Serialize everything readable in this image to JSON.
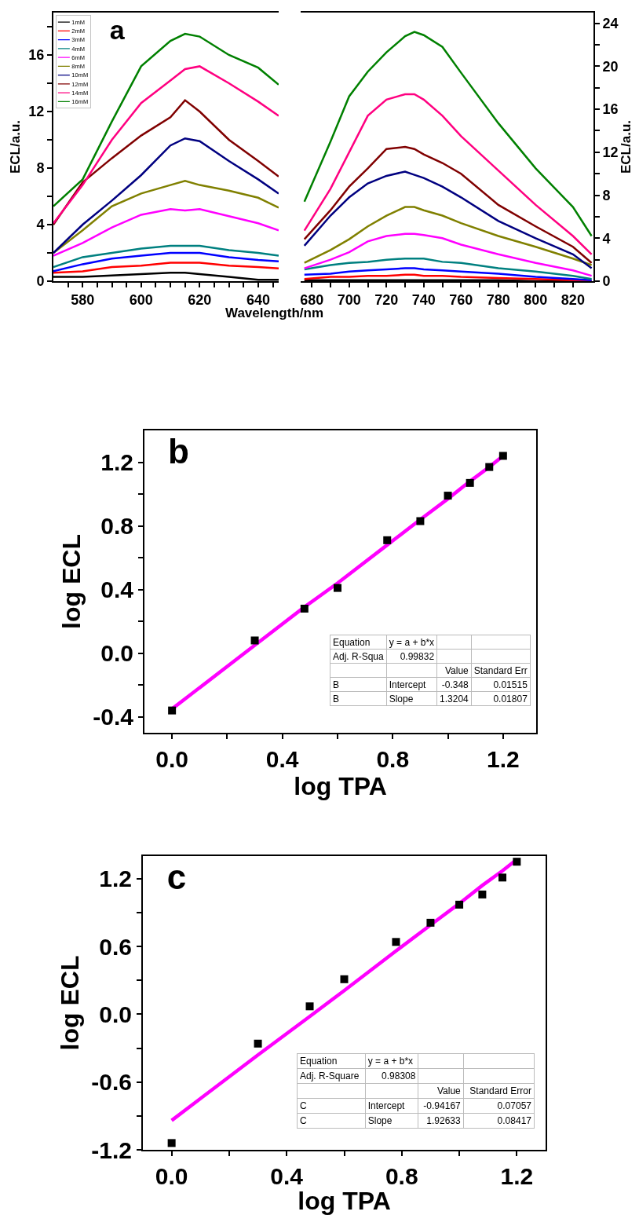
{
  "chart_data": [
    {
      "type": "line",
      "title": "a",
      "xlabel": "Wavelength/nm",
      "ylabel": "ECL/a.u.",
      "legend": "top left",
      "x": [
        570,
        580,
        590,
        600,
        610,
        615,
        620,
        630,
        640,
        647
      ],
      "xlim": [
        570,
        647
      ],
      "xticks": [
        {
          "value": 575,
          "label": null
        },
        580,
        {
          "value": 585,
          "label": null
        },
        {
          "value": 590,
          "label": null
        },
        {
          "value": 595,
          "label": null
        },
        600,
        {
          "value": 605,
          "label": null
        },
        {
          "value": 610,
          "label": null
        },
        {
          "value": 615,
          "label": null
        },
        620,
        {
          "value": 625,
          "label": null
        },
        {
          "value": 630,
          "label": null
        },
        {
          "value": 635,
          "label": null
        },
        640,
        {
          "value": 645,
          "label": null
        }
      ],
      "ylim": [
        0,
        19
      ],
      "yticks": [
        0,
        {
          "value": 2,
          "label": null
        },
        4,
        {
          "value": 6,
          "label": null
        },
        8,
        {
          "value": 10,
          "label": null
        },
        12,
        {
          "value": 14,
          "label": null
        },
        16,
        {
          "value": 18,
          "label": null
        }
      ],
      "series": [
        {
          "name": "1mM",
          "color": "#000000",
          "values": [
            0.3,
            0.3,
            0.4,
            0.5,
            0.6,
            0.6,
            0.5,
            0.3,
            0.1,
            0.1
          ]
        },
        {
          "name": "2mM",
          "color": "#ff0000",
          "values": [
            0.6,
            0.7,
            1.0,
            1.1,
            1.3,
            1.3,
            1.3,
            1.1,
            1.0,
            0.9
          ]
        },
        {
          "name": "3mM",
          "color": "#0000ff",
          "values": [
            0.7,
            1.2,
            1.6,
            1.8,
            2.0,
            2.0,
            2.0,
            1.7,
            1.5,
            1.4
          ]
        },
        {
          "name": "4mM",
          "color": "#008080",
          "values": [
            1.0,
            1.7,
            2.0,
            2.3,
            2.5,
            2.5,
            2.5,
            2.2,
            2.0,
            1.8
          ]
        },
        {
          "name": "6mM",
          "color": "#ff00ff",
          "values": [
            1.8,
            2.7,
            3.8,
            4.7,
            5.1,
            5.0,
            5.1,
            4.6,
            4.1,
            3.6
          ]
        },
        {
          "name": "8mM",
          "color": "#808000",
          "values": [
            2.0,
            3.6,
            5.3,
            6.2,
            6.8,
            7.1,
            6.8,
            6.4,
            5.9,
            5.2
          ]
        },
        {
          "name": "10mM",
          "color": "#000080",
          "values": [
            2.0,
            4.0,
            5.7,
            7.5,
            9.6,
            10.1,
            9.9,
            8.5,
            7.2,
            6.2
          ]
        },
        {
          "name": "12mM",
          "color": "#800000",
          "values": [
            4.0,
            7.0,
            8.7,
            10.3,
            11.6,
            12.8,
            12.0,
            10.0,
            8.5,
            7.4
          ]
        },
        {
          "name": "14mM",
          "color": "#ff0080",
          "values": [
            4.1,
            6.8,
            10.0,
            12.6,
            14.2,
            15.0,
            15.2,
            14.0,
            12.7,
            11.7
          ]
        },
        {
          "name": "16mM",
          "color": "#008000",
          "values": [
            5.3,
            7.2,
            11.3,
            15.2,
            17.0,
            17.5,
            17.3,
            16.0,
            15.1,
            13.9
          ]
        }
      ]
    },
    {
      "type": "line",
      "y2label": "ECL/a.u.",
      "x": [
        676,
        690,
        700,
        710,
        720,
        730,
        735,
        740,
        750,
        760,
        780,
        800,
        820,
        830
      ],
      "xlim": [
        674,
        831
      ],
      "xticks": [
        680,
        {
          "value": 690,
          "label": null
        },
        700,
        {
          "value": 710,
          "label": null
        },
        720,
        {
          "value": 730,
          "label": null
        },
        740,
        {
          "value": 750,
          "label": null
        },
        760,
        {
          "value": 770,
          "label": null
        },
        780,
        {
          "value": 790,
          "label": null
        },
        800,
        {
          "value": 810,
          "label": null
        },
        820
      ],
      "y2lim": [
        0,
        25
      ],
      "y2ticks": [
        0,
        {
          "value": 2,
          "label": null
        },
        4,
        {
          "value": 6,
          "label": null
        },
        8,
        {
          "value": 10,
          "label": null
        },
        12,
        {
          "value": 14,
          "label": null
        },
        16,
        {
          "value": 18,
          "label": null
        },
        20,
        {
          "value": 22,
          "label": null
        },
        24
      ],
      "series": [
        {
          "axis": "y2",
          "color": "#000000",
          "values": [
            0.1,
            0.1,
            0.1,
            0.1,
            0.1,
            0.1,
            0.1,
            0.1,
            0.1,
            0.1,
            0.1,
            0.0,
            0.0,
            0.0
          ]
        },
        {
          "axis": "y2",
          "color": "#ff0000",
          "values": [
            0.2,
            0.4,
            0.4,
            0.5,
            0.5,
            0.6,
            0.6,
            0.5,
            0.5,
            0.4,
            0.3,
            0.2,
            0.1,
            0.0
          ]
        },
        {
          "axis": "y2",
          "color": "#0000ff",
          "values": [
            0.6,
            0.7,
            0.9,
            1.0,
            1.1,
            1.2,
            1.2,
            1.1,
            1.0,
            0.9,
            0.7,
            0.4,
            0.2,
            0.1
          ]
        },
        {
          "axis": "y2",
          "color": "#008080",
          "values": [
            1.1,
            1.5,
            1.7,
            1.8,
            2.0,
            2.1,
            2.1,
            2.1,
            1.8,
            1.7,
            1.2,
            0.9,
            0.5,
            0.2
          ]
        },
        {
          "axis": "y2",
          "color": "#ff00ff",
          "values": [
            1.2,
            2.0,
            2.7,
            3.7,
            4.2,
            4.4,
            4.4,
            4.3,
            4.0,
            3.4,
            2.5,
            1.7,
            1.0,
            0.5
          ]
        },
        {
          "axis": "y2",
          "color": "#808000",
          "values": [
            1.7,
            2.9,
            3.9,
            5.1,
            6.1,
            6.9,
            6.9,
            6.6,
            6.1,
            5.4,
            4.2,
            3.2,
            2.1,
            1.5
          ]
        },
        {
          "axis": "y2",
          "color": "#000080",
          "values": [
            3.3,
            6.1,
            7.8,
            9.1,
            9.8,
            10.2,
            9.9,
            9.6,
            8.8,
            7.8,
            5.6,
            4.0,
            2.5,
            1.2
          ]
        },
        {
          "axis": "y2",
          "color": "#800000",
          "values": [
            3.9,
            6.6,
            8.8,
            10.5,
            12.3,
            12.5,
            12.3,
            11.8,
            11.0,
            10.0,
            7.1,
            5.1,
            3.2,
            1.7
          ]
        },
        {
          "axis": "y2",
          "color": "#ff0080",
          "values": [
            4.7,
            8.6,
            12.0,
            15.4,
            16.9,
            17.4,
            17.4,
            16.9,
            15.4,
            13.5,
            10.3,
            7.1,
            4.2,
            2.5
          ]
        },
        {
          "axis": "y2",
          "color": "#008000",
          "values": [
            7.4,
            13.0,
            17.2,
            19.5,
            21.3,
            22.8,
            23.2,
            22.9,
            21.8,
            19.4,
            14.7,
            10.5,
            6.9,
            4.2
          ]
        }
      ]
    },
    {
      "type": "scatter",
      "title": "b",
      "xlabel": "log TPA",
      "ylabel": "log ECL",
      "x": [
        0,
        0.3,
        0.48,
        0.6,
        0.78,
        0.9,
        1.0,
        1.08,
        1.15,
        1.2
      ],
      "xlim": [
        -0.1,
        1.32
      ],
      "xticks": [
        {
          "value": 0,
          "label": "0.0"
        },
        {
          "value": 0.2,
          "label": null
        },
        0.4,
        {
          "value": 0.6,
          "label": null
        },
        0.8,
        {
          "value": 1.0,
          "label": null
        },
        1.2
      ],
      "ylim": [
        -0.5,
        1.4
      ],
      "yticks": [
        -0.4,
        {
          "value": -0.2,
          "label": null
        },
        {
          "value": 0,
          "label": "0.0"
        },
        {
          "value": 0.2,
          "label": null
        },
        0.4,
        {
          "value": 0.6,
          "label": null
        },
        0.8,
        {
          "value": 1.0,
          "label": null
        },
        1.2
      ],
      "series": [
        {
          "color": "#000000",
          "marker": "square",
          "values": [
            -0.36,
            0.08,
            0.28,
            0.41,
            0.71,
            0.83,
            0.99,
            1.07,
            1.17,
            1.24
          ]
        },
        {
          "type": "line",
          "color": "#ff00ff",
          "values": [
            -0.35,
            0.05,
            0.29,
            0.44,
            0.68,
            0.84,
            0.97,
            1.08,
            1.17,
            1.24
          ]
        }
      ],
      "annotations": [
        "Equation",
        "y = a + b*x",
        "Adj. R-Squa",
        "0.99832",
        "Value",
        "Standard Err",
        "B",
        "Intercept",
        "-0.348",
        "0.01515",
        "B",
        "Slope",
        "1.3204",
        "0.01807"
      ]
    },
    {
      "type": "scatter",
      "title": "c",
      "xlabel": "log TPA",
      "ylabel": "log ECL",
      "x": [
        0,
        0.3,
        0.48,
        0.6,
        0.78,
        0.9,
        1.0,
        1.08,
        1.15,
        1.2
      ],
      "xlim": [
        -0.1,
        1.3
      ],
      "xticks": [
        {
          "value": 0,
          "label": "0.0"
        },
        {
          "value": 0.2,
          "label": null
        },
        0.4,
        {
          "value": 0.6,
          "label": null
        },
        0.8,
        {
          "value": 1.0,
          "label": null
        },
        1.2
      ],
      "ylim": [
        -1.2,
        1.4
      ],
      "yticks": [
        -1.2,
        {
          "value": -0.9,
          "label": null
        },
        -0.6,
        {
          "value": -0.3,
          "label": null
        },
        {
          "value": 0,
          "label": "0.0"
        },
        {
          "value": 0.3,
          "label": null
        },
        0.6,
        {
          "value": 0.9,
          "label": null
        },
        1.2
      ],
      "series": [
        {
          "color": "#000000",
          "marker": "square",
          "values": [
            -1.14,
            -0.26,
            0.07,
            0.31,
            0.64,
            0.81,
            0.97,
            1.06,
            1.21,
            1.35
          ]
        },
        {
          "type": "line",
          "color": "#ff00ff",
          "values": [
            -0.94,
            -0.36,
            -0.02,
            0.21,
            0.56,
            0.79,
            0.98,
            1.14,
            1.27,
            1.37
          ]
        }
      ],
      "annotations": [
        "Equation",
        "y = a + b*x",
        "Adj. R-Square",
        "0.98308",
        "Value",
        "Standard Error",
        "C",
        "Intercept",
        "-0.94167",
        "0.07057",
        "C",
        "Slope",
        "1.92633",
        "0.08417"
      ]
    }
  ]
}
